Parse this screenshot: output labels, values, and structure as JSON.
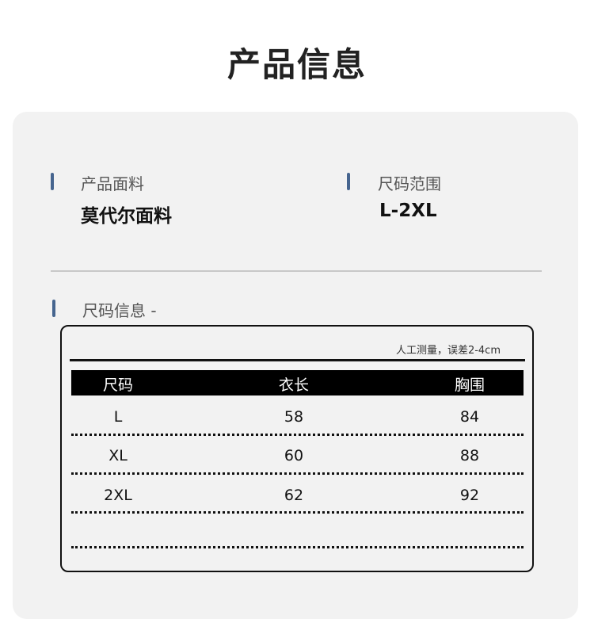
{
  "title": "产品信息",
  "fabric": {
    "label": "产品面料",
    "value": "莫代尔面料"
  },
  "size_range": {
    "label": "尺码范围",
    "value": "L-2XL"
  },
  "size_info": {
    "label": "尺码信息 -"
  },
  "table": {
    "note": "人工测量，误差2-4cm",
    "headers": [
      "尺码",
      "衣长",
      "胸围"
    ],
    "rows": [
      [
        "L",
        "58",
        "84"
      ],
      [
        "XL",
        "60",
        "88"
      ],
      [
        "2XL",
        "62",
        "92"
      ]
    ]
  },
  "colors": {
    "accent": "#46658f",
    "card": "#f2f2f2"
  }
}
